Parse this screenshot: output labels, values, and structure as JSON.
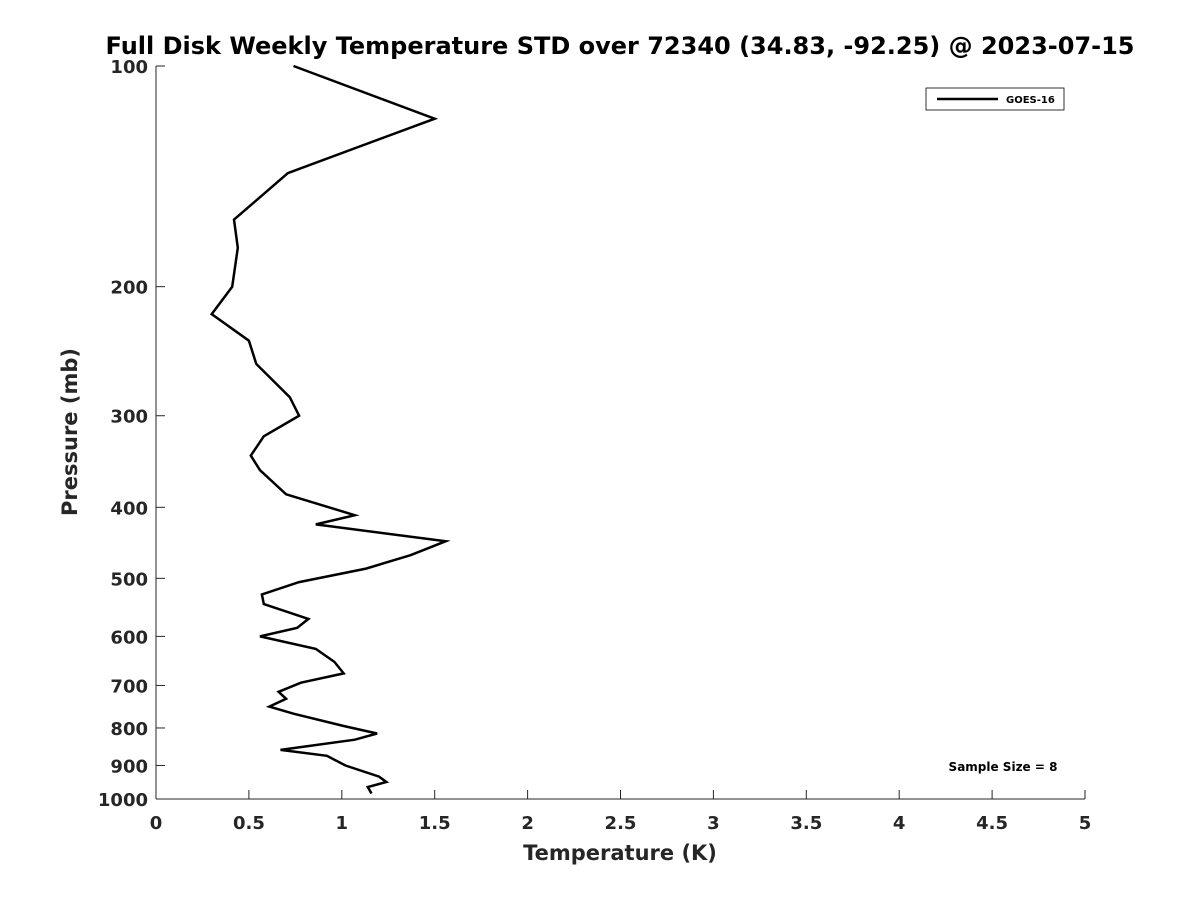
{
  "chart_data": {
    "type": "line",
    "title": "Full Disk Weekly Temperature STD over 72340 (34.83, -92.25) @ 2023-07-15",
    "xlabel": "Temperature (K)",
    "ylabel": "Pressure (mb)",
    "xlim": [
      0,
      5
    ],
    "ylim": [
      100,
      1000
    ],
    "y_scale": "log",
    "y_reversed": true,
    "x_ticks": [
      0,
      0.5,
      1,
      1.5,
      2,
      2.5,
      3,
      3.5,
      4,
      4.5,
      5
    ],
    "x_tick_labels": [
      "0",
      "0.5",
      "1",
      "1.5",
      "2",
      "2.5",
      "3",
      "3.5",
      "4",
      "4.5",
      "5"
    ],
    "y_ticks": [
      100,
      200,
      300,
      400,
      500,
      600,
      700,
      800,
      900,
      1000
    ],
    "y_tick_labels": [
      "100",
      "200",
      "300",
      "400",
      "500",
      "600",
      "700",
      "800",
      "900",
      "1000"
    ],
    "grid": false,
    "legend_position": "top-right",
    "annotation": "Sample Size = 8",
    "series": [
      {
        "name": "GOES-16",
        "color": "#000000",
        "x": [
          0.74,
          1.5,
          0.71,
          0.42,
          0.44,
          0.41,
          0.3,
          0.5,
          0.54,
          0.72,
          0.77,
          0.58,
          0.51,
          0.56,
          0.7,
          1.07,
          0.86,
          1.56,
          1.37,
          1.13,
          0.77,
          0.57,
          0.58,
          0.82,
          0.76,
          0.56,
          0.86,
          0.96,
          1.01,
          0.78,
          0.66,
          0.7,
          0.61,
          0.74,
          1.01,
          1.19,
          1.07,
          0.67,
          0.92,
          1.02,
          1.2,
          1.24,
          1.14,
          1.16
        ],
        "y": [
          100,
          118,
          140,
          162,
          177,
          200,
          218,
          237,
          255,
          283,
          300,
          320,
          340,
          356,
          384,
          410,
          422,
          445,
          465,
          485,
          506,
          526,
          542,
          568,
          584,
          600,
          624,
          650,
          674,
          694,
          714,
          730,
          748,
          765,
          795,
          814,
          830,
          857,
          873,
          900,
          932,
          948,
          963,
          983
        ]
      }
    ]
  }
}
